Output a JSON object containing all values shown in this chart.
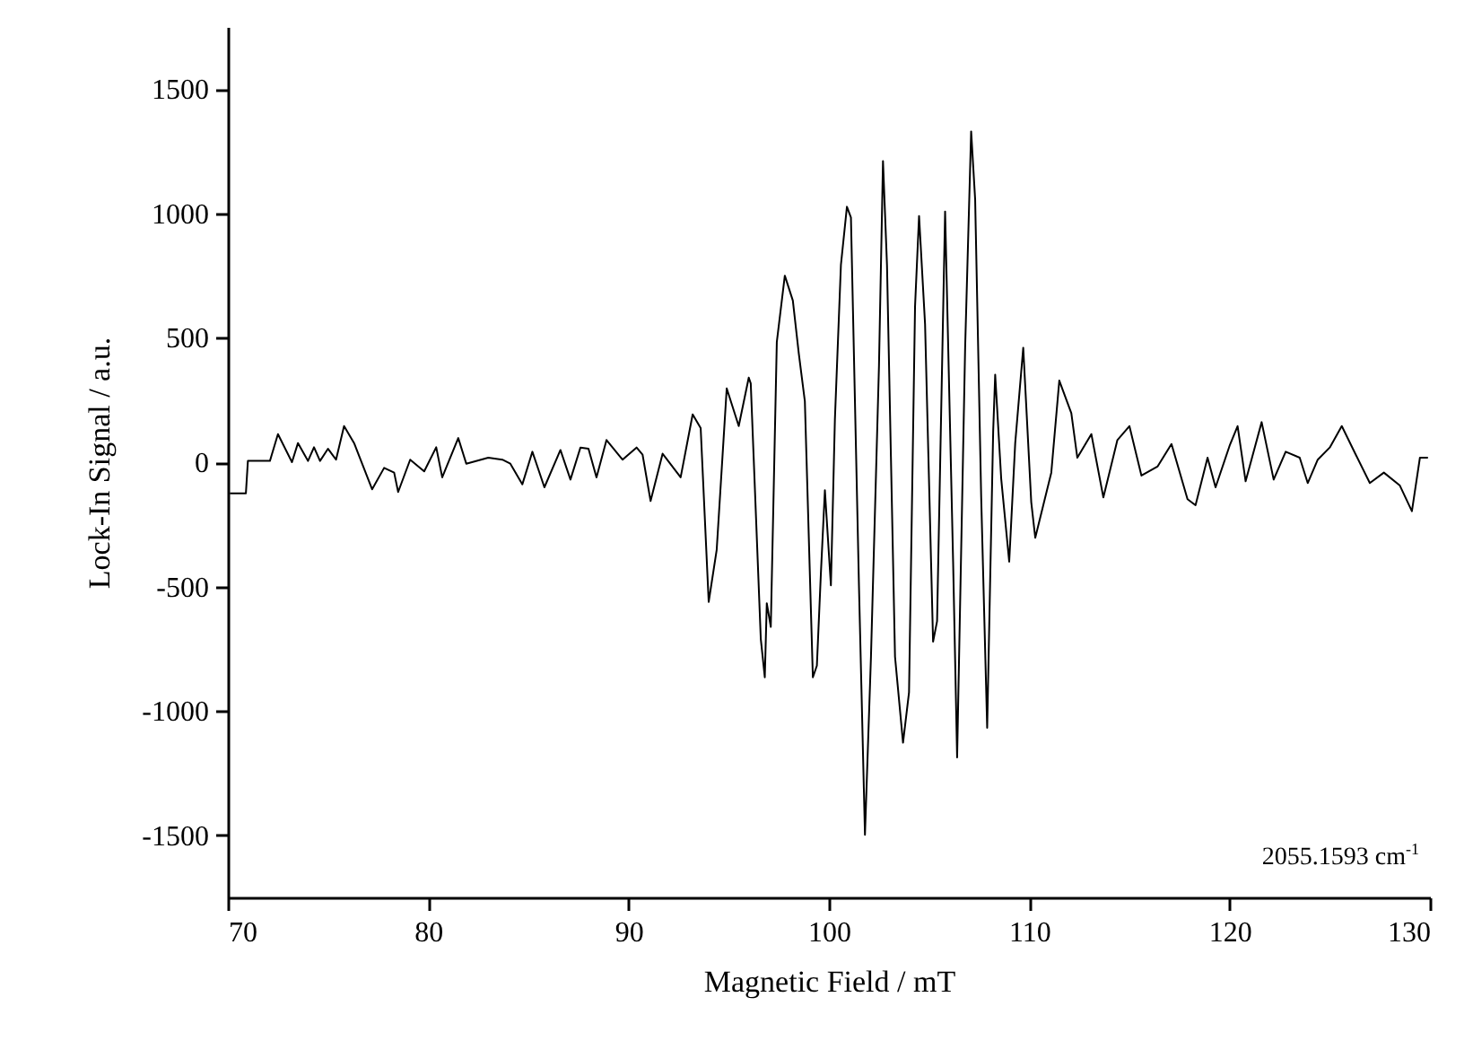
{
  "chart_data": {
    "type": "line",
    "xlabel": "Magnetic Field / mT",
    "ylabel": "Lock-In Signal / a.u.",
    "annotations": [
      "2055.1593 cm$^{-1}$"
    ],
    "x": [
      70.1,
      70.9,
      71.0,
      72.1,
      72.5,
      73.2,
      73.5,
      74.0,
      74.3,
      74.6,
      75.0,
      75.4,
      75.8,
      76.3,
      77.2,
      77.8,
      78.3,
      78.5,
      79.1,
      79.8,
      80.4,
      80.7,
      81.5,
      81.9,
      83.0,
      83.7,
      84.1,
      84.7,
      85.2,
      85.8,
      86.6,
      87.1,
      87.6,
      88.0,
      88.4,
      88.9,
      89.7,
      90.4,
      90.7,
      91.1,
      91.7,
      92.6,
      93.2,
      93.6,
      94.0,
      94.4,
      94.9,
      95.5,
      96.0,
      96.1,
      96.6,
      96.8,
      96.9,
      97.1,
      97.4,
      97.8,
      98.2,
      98.5,
      98.8,
      99.2,
      99.4,
      99.6,
      99.8,
      100.1,
      100.3,
      100.6,
      100.9,
      101.1,
      101.5,
      101.8,
      102.1,
      102.5,
      102.7,
      102.9,
      103.3,
      103.7,
      104.0,
      104.3,
      104.5,
      104.8,
      105.2,
      105.4,
      105.8,
      106.2,
      106.4,
      106.8,
      107.1,
      107.3,
      107.6,
      107.9,
      108.2,
      108.3,
      108.6,
      109.0,
      109.3,
      109.7,
      110.1,
      110.3,
      110.7,
      111.1,
      111.5,
      112.1,
      112.4,
      113.1,
      113.7,
      114.4,
      115.0,
      115.6,
      116.4,
      117.1,
      117.9,
      118.3,
      118.9,
      119.3,
      120.0,
      120.4,
      120.8,
      121.6,
      122.2,
      122.8,
      123.5,
      123.9,
      124.4,
      125.0,
      125.6,
      126.3,
      127.0,
      127.7,
      128.5,
      129.1,
      129.5,
      129.9
    ],
    "values": [
      -125,
      -125,
      5,
      5,
      113,
      0,
      77,
      5,
      60,
      5,
      54,
      10,
      145,
      77,
      -109,
      -23,
      -42,
      -120,
      10,
      -37,
      60,
      -61,
      97,
      -6,
      18,
      10,
      -6,
      -89,
      42,
      -101,
      49,
      -70,
      59,
      54,
      -61,
      89,
      10,
      59,
      30,
      -156,
      34,
      -61,
      192,
      137,
      -562,
      -352,
      297,
      145,
      340,
      316,
      -710,
      -865,
      -567,
      -662,
      483,
      750,
      650,
      435,
      245,
      -865,
      -818,
      -447,
      -113,
      -495,
      173,
      793,
      1027,
      984,
      -495,
      -1498,
      -782,
      388,
      1211,
      793,
      -782,
      -1128,
      -925,
      627,
      990,
      555,
      -722,
      -639,
      1008,
      -400,
      -1187,
      460,
      1330,
      1056,
      -137,
      -1068,
      125,
      352,
      -66,
      -400,
      77,
      460,
      -161,
      -304,
      -173,
      -42,
      328,
      197,
      18,
      113,
      -142,
      89,
      145,
      -54,
      -18,
      73,
      -149,
      -173,
      18,
      -101,
      66,
      145,
      -77,
      161,
      -70,
      42,
      18,
      -84,
      10,
      59,
      145,
      30,
      -84,
      -42,
      -94,
      -197,
      18,
      18
    ],
    "color": "#000000",
    "xlim": [
      70,
      130
    ],
    "ylim": [
      -1750,
      1750
    ],
    "xticks": [
      70,
      80,
      90,
      100,
      110,
      120,
      130
    ],
    "yticks": [
      -1500,
      -1000,
      -500,
      0,
      500,
      1000,
      1500
    ]
  }
}
